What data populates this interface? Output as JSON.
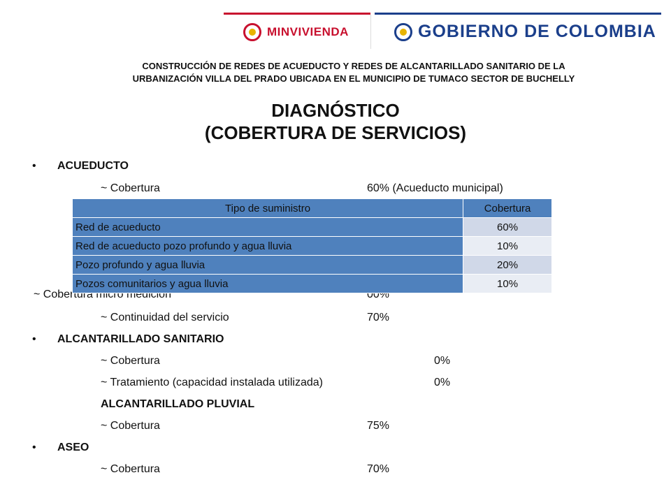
{
  "logos": {
    "minvivienda": "MINVIVIENDA",
    "gobierno": "GOBIERNO DE COLOMBIA",
    "red": "#c8102e",
    "blue": "#1b3f8b"
  },
  "header": {
    "line1": "CONSTRUCCIÓN DE REDES DE ACUEDUCTO Y REDES DE ALCANTARILLADO SANITARIO DE LA",
    "line2": "URBANIZACIÓN VILLA DEL PRADO UBICADA EN EL MUNICIPIO DE TUMACO SECTOR DE BUCHELLY"
  },
  "title": {
    "line1": "DIAGNÓSTICO",
    "line2": "(COBERTURA DE SERVICIOS)"
  },
  "acueducto": {
    "heading": "ACUEDUCTO",
    "cobertura_label": "~ Cobertura",
    "cobertura_value": "60% (Acueducto municipal)",
    "micro_label": "~ Cobertura micro medición",
    "micro_value": "00%",
    "continuidad_label": "~ Continuidad del servicio",
    "continuidad_value": "70%"
  },
  "table": {
    "headers": [
      "Tipo de suministro",
      "Cobertura"
    ],
    "rows": [
      [
        "Red de acueducto",
        "60%"
      ],
      [
        "Red de acueducto pozo profundo y agua lluvia",
        "10%"
      ],
      [
        "Pozo profundo y agua lluvia",
        "20%"
      ],
      [
        "Pozos comunitarios y agua lluvia",
        "10%"
      ]
    ]
  },
  "alcantarillado": {
    "heading": "ALCANTARILLADO SANITARIO",
    "cobertura_label": "~ Cobertura",
    "cobertura_value": "0%",
    "tratamiento_label": "~ Tratamiento (capacidad instalada utilizada)",
    "tratamiento_value": "0%",
    "pluvial_heading": "ALCANTARILLADO PLUVIAL",
    "pluvial_label": "~ Cobertura",
    "pluvial_value": "75%"
  },
  "aseo": {
    "heading": "ASEO",
    "cobertura_label": "~ Cobertura",
    "cobertura_value": "70%"
  },
  "bullet_char": "•"
}
